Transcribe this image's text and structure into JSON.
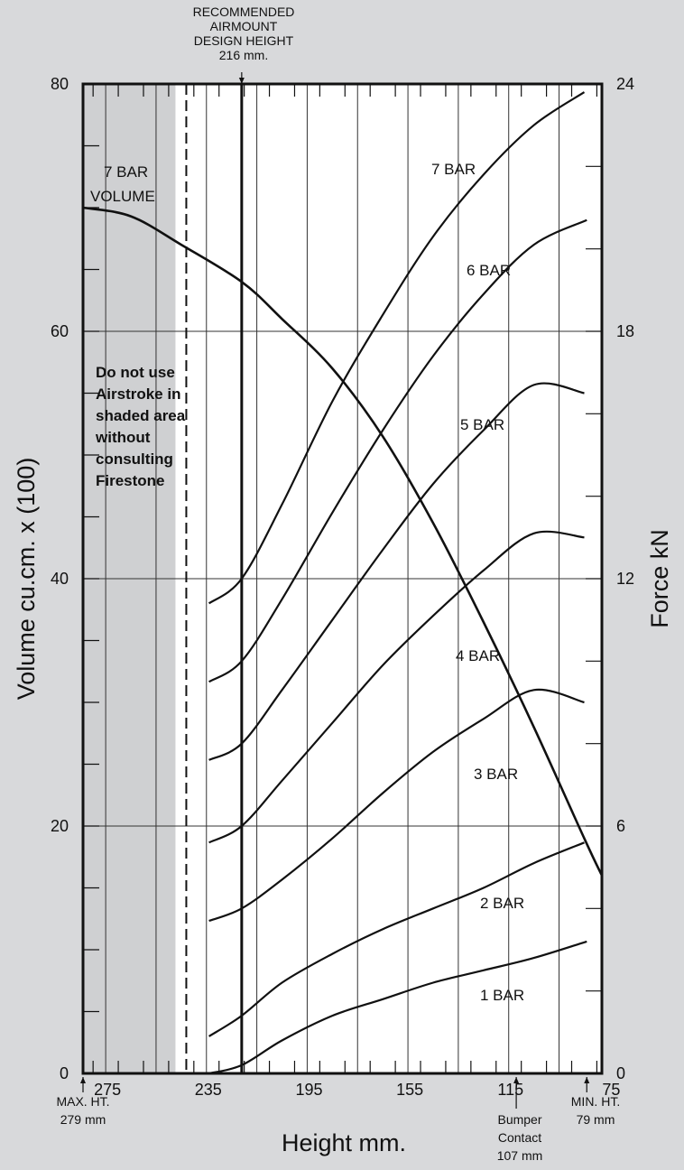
{
  "chart_data": {
    "type": "line",
    "xlabel": "Height mm.",
    "ylabel_left": "Volume cu.cm. x (100)",
    "ylabel_right": "Force kN",
    "x_axis": {
      "reversed": true,
      "xlim": [
        279,
        73
      ],
      "ticks": [
        275,
        235,
        195,
        155,
        115,
        75
      ]
    },
    "y_left": {
      "ylim": [
        0,
        80
      ],
      "ticks": [
        0,
        20,
        40,
        60,
        80
      ]
    },
    "y_right": {
      "ylim": [
        0,
        24
      ],
      "ticks": [
        0,
        6,
        12,
        18,
        24
      ]
    },
    "grid": true,
    "annotations": {
      "design_height": {
        "lines": [
          "RECOMMENDED",
          "AIRMOUNT",
          "DESIGN HEIGHT",
          "216 mm."
        ],
        "x": 216
      },
      "max_height": {
        "lines": [
          "MAX.  HT.",
          "279 mm"
        ],
        "x": 279
      },
      "min_height": {
        "lines": [
          "MIN. HT.",
          "79 mm"
        ],
        "x": 79
      },
      "bumper": {
        "lines": [
          "Bumper",
          "Contact",
          "107 mm"
        ],
        "x": 107
      },
      "shaded_limit_x": 238,
      "warning": [
        "Do not use",
        "Airstroke in",
        "shaded area",
        "without",
        "consulting",
        "Firestone"
      ]
    },
    "volume_series": {
      "name": "7 BAR VOLUME",
      "label_lines": [
        "7 BAR",
        "VOLUME"
      ],
      "axis": "left",
      "x": [
        279,
        260,
        240,
        216,
        200,
        180,
        160,
        140,
        120,
        100,
        80,
        73
      ],
      "y": [
        70,
        69.3,
        67,
        64,
        61,
        57,
        51.5,
        44.5,
        36.5,
        28,
        19,
        16
      ]
    },
    "force_series": [
      {
        "name": "7 BAR",
        "axis": "right",
        "x": [
          229,
          216,
          200,
          180,
          160,
          140,
          120,
          100,
          80
        ],
        "y": [
          11.4,
          12,
          13.8,
          16.3,
          18.4,
          20.3,
          21.8,
          23,
          23.8
        ]
      },
      {
        "name": "6 BAR",
        "axis": "right",
        "x": [
          229,
          216,
          200,
          180,
          160,
          140,
          120,
          100,
          79
        ],
        "y": [
          9.5,
          10,
          11.5,
          13.6,
          15.6,
          17.4,
          18.9,
          20.1,
          20.7
        ]
      },
      {
        "name": "5 BAR",
        "axis": "right",
        "x": [
          229,
          216,
          200,
          180,
          160,
          140,
          120,
          100,
          80
        ],
        "y": [
          7.6,
          8,
          9.3,
          11,
          12.7,
          14.3,
          15.6,
          16.7,
          16.5
        ]
      },
      {
        "name": "4 BAR",
        "axis": "right",
        "x": [
          229,
          216,
          200,
          180,
          160,
          140,
          120,
          100,
          80
        ],
        "y": [
          5.6,
          6,
          7.1,
          8.5,
          9.9,
          11.1,
          12.2,
          13.1,
          13
        ]
      },
      {
        "name": "3 BAR",
        "axis": "right",
        "x": [
          229,
          216,
          200,
          180,
          160,
          140,
          120,
          100,
          80
        ],
        "y": [
          3.7,
          4,
          4.7,
          5.7,
          6.8,
          7.8,
          8.6,
          9.3,
          9
        ]
      },
      {
        "name": "2 BAR",
        "axis": "right",
        "x": [
          229,
          216,
          200,
          180,
          160,
          140,
          120,
          100,
          80
        ],
        "y": [
          0.9,
          1.4,
          2.2,
          2.9,
          3.5,
          4,
          4.5,
          5.1,
          5.6
        ]
      },
      {
        "name": "1 BAR",
        "axis": "right",
        "x": [
          229,
          216,
          200,
          180,
          160,
          140,
          120,
          100,
          79
        ],
        "y": [
          0,
          0.2,
          0.8,
          1.4,
          1.8,
          2.2,
          2.5,
          2.8,
          3.2
        ]
      }
    ]
  }
}
